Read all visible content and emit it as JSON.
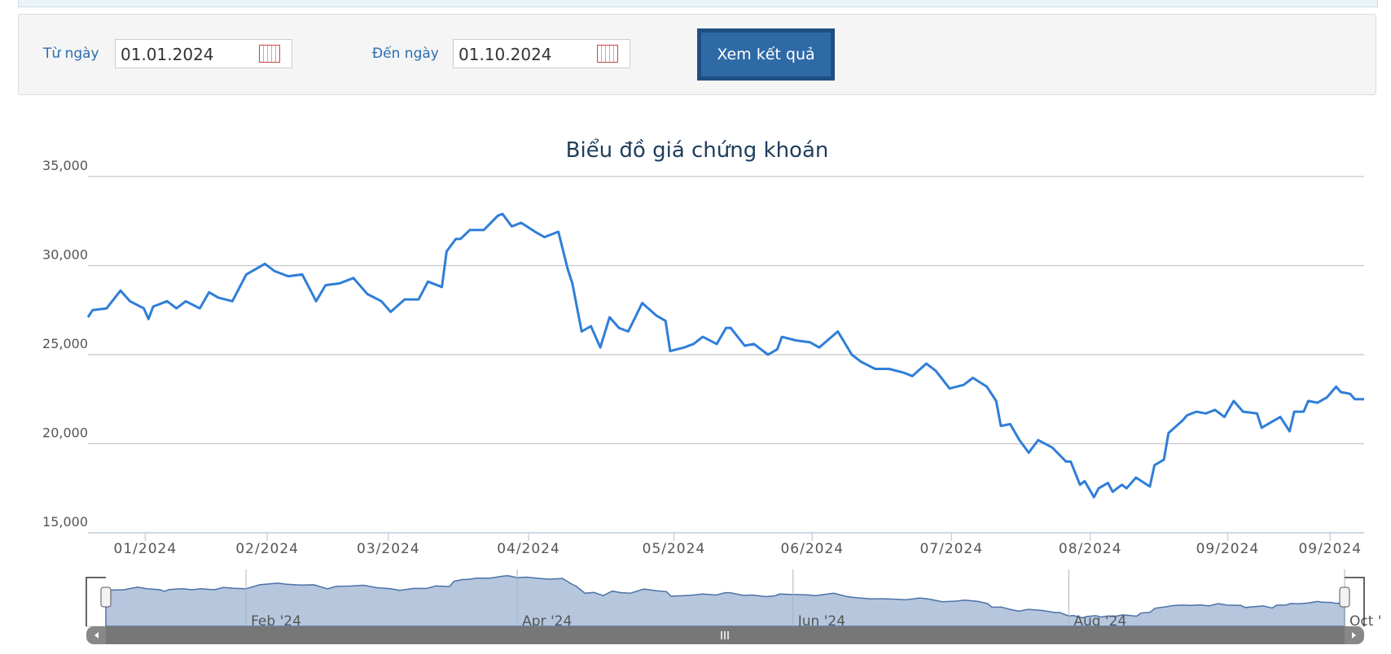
{
  "form": {
    "from_label": "Từ ngày",
    "from_value": "01.01.2024",
    "to_label": "Đến ngày",
    "to_value": "01.10.2024",
    "button": "Xem kết quả"
  },
  "chart_data": {
    "type": "line",
    "title": "Biểu đồ giá chứng khoán",
    "color": "#2f7ed8",
    "grid": true,
    "x": [
      0,
      1,
      4,
      7,
      9,
      12,
      13,
      14,
      17,
      19,
      21,
      24,
      26,
      28,
      31,
      34,
      38,
      40,
      43,
      46,
      49,
      51,
      54,
      57,
      60,
      63,
      65,
      68,
      71,
      73,
      76,
      77,
      79,
      80,
      82,
      85,
      88,
      89,
      91,
      93,
      96,
      98,
      101,
      103,
      104,
      106,
      108,
      110,
      112,
      114,
      116,
      119,
      122,
      124,
      125,
      128,
      130,
      132,
      135,
      137,
      138,
      141,
      143,
      146,
      148,
      149,
      152,
      155,
      157,
      161,
      164,
      166,
      169,
      172,
      175,
      177,
      180,
      182,
      185,
      188,
      190,
      193,
      195,
      196,
      198,
      200,
      202,
      204,
      207,
      210,
      211,
      213,
      214,
      216,
      217,
      219,
      220,
      222,
      223,
      225,
      228,
      229,
      231,
      232,
      235,
      236,
      238,
      240,
      242,
      244,
      246,
      248,
      251,
      252,
      254,
      256,
      258,
      259,
      261,
      262,
      264,
      266,
      268,
      269,
      271,
      272,
      274
    ],
    "values": [
      27100,
      27500,
      27600,
      28600,
      28000,
      27600,
      27000,
      27700,
      28000,
      27600,
      28000,
      27600,
      28500,
      28200,
      28000,
      29500,
      30100,
      29700,
      29400,
      29500,
      28000,
      28900,
      29000,
      29300,
      28400,
      28000,
      27400,
      28100,
      28100,
      29100,
      28800,
      30800,
      31500,
      31500,
      32000,
      32000,
      32800,
      32900,
      32200,
      32400,
      31900,
      31600,
      31900,
      29800,
      29000,
      26300,
      26600,
      25400,
      27100,
      26500,
      26300,
      27900,
      27200,
      26900,
      25200,
      25400,
      25600,
      26000,
      25600,
      26500,
      26500,
      25500,
      25600,
      25000,
      25300,
      26000,
      25800,
      25700,
      25400,
      26300,
      25000,
      24600,
      24200,
      24200,
      24000,
      23800,
      24500,
      24100,
      23100,
      23300,
      23700,
      23200,
      22400,
      21000,
      21100,
      20200,
      19500,
      20200,
      19800,
      19000,
      19000,
      17700,
      17900,
      17000,
      17500,
      17800,
      17300,
      17700,
      17500,
      18100,
      17600,
      18800,
      19100,
      20600,
      21300,
      21600,
      21800,
      21700,
      21900,
      21500,
      22400,
      21800,
      21700,
      20900,
      21200,
      21500,
      20700,
      21800,
      21800,
      22400,
      22300,
      22600,
      23200,
      22900,
      22800,
      22500,
      22500
    ],
    "xlim": [
      0,
      274
    ],
    "ylim": [
      15000,
      35000
    ],
    "yticks": [
      {
        "value": 15000,
        "label": "15,000"
      },
      {
        "value": 20000,
        "label": "20,000"
      },
      {
        "value": 25000,
        "label": "25,000"
      },
      {
        "value": 30000,
        "label": "30,000"
      },
      {
        "value": 35000,
        "label": "35,000"
      }
    ],
    "xticks": [
      {
        "value": 12.3,
        "label": "01/2024"
      },
      {
        "value": 38.5,
        "label": "02/2024"
      },
      {
        "value": 64.5,
        "label": "03/2024"
      },
      {
        "value": 94.6,
        "label": "04/2024"
      },
      {
        "value": 125.8,
        "label": "05/2024"
      },
      {
        "value": 155.5,
        "label": "06/2024"
      },
      {
        "value": 185.4,
        "label": "07/2024"
      },
      {
        "value": 215.2,
        "label": "08/2024"
      },
      {
        "value": 244.7,
        "label": "09/2024"
      },
      {
        "value": 266.7,
        "label": "09/2024"
      }
    ],
    "navigator_xticks": [
      {
        "value": 31,
        "label": "Feb '24"
      },
      {
        "value": 91,
        "label": "Apr '24"
      },
      {
        "value": 152,
        "label": "Jun '24"
      },
      {
        "value": 213,
        "label": "Aug '24"
      },
      {
        "value": 274,
        "label": "Oct '"
      }
    ]
  }
}
